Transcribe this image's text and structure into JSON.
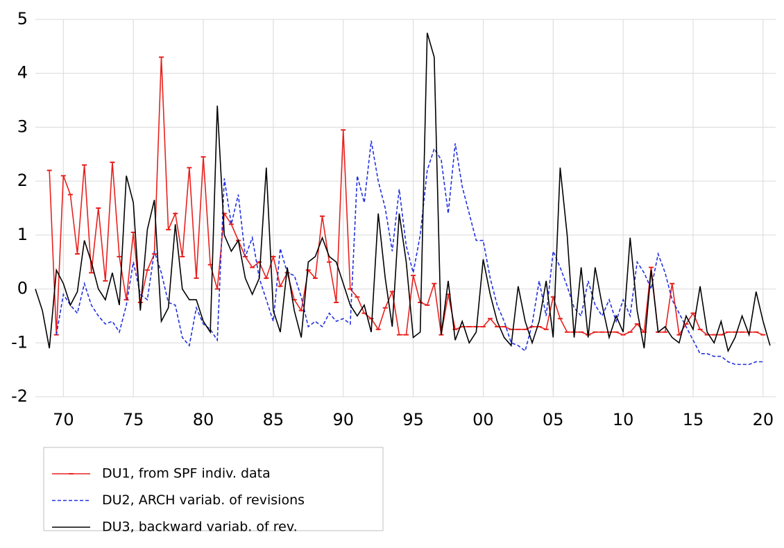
{
  "chart_data": {
    "type": "line",
    "x": [
      1968,
      1968.5,
      1969,
      1969.5,
      1970,
      1970.5,
      1971,
      1971.5,
      1972,
      1972.5,
      1973,
      1973.5,
      1974,
      1974.5,
      1975,
      1975.5,
      1976,
      1976.5,
      1977,
      1977.5,
      1978,
      1978.5,
      1979,
      1979.5,
      1980,
      1980.5,
      1981,
      1981.5,
      1982,
      1982.5,
      1983,
      1983.5,
      1984,
      1984.5,
      1985,
      1985.5,
      1986,
      1986.5,
      1987,
      1987.5,
      1988,
      1988.5,
      1989,
      1989.5,
      1990,
      1990.5,
      1991,
      1991.5,
      1992,
      1992.5,
      1993,
      1993.5,
      1994,
      1994.5,
      1995,
      1995.5,
      1996,
      1996.5,
      1997,
      1997.5,
      1998,
      1998.5,
      1999,
      1999.5,
      2000,
      2000.5,
      2001,
      2001.5,
      2002,
      2002.5,
      2003,
      2003.5,
      2004,
      2004.5,
      2005,
      2005.5,
      2006,
      2006.5,
      2007,
      2007.5,
      2008,
      2008.5,
      2009,
      2009.5,
      2010,
      2010.5,
      2011,
      2011.5,
      2012,
      2012.5,
      2013,
      2013.5,
      2014,
      2014.5,
      2015,
      2015.5,
      2016,
      2016.5,
      2017,
      2017.5,
      2018,
      2018.5,
      2019,
      2019.5,
      2020,
      2020.5
    ],
    "series": [
      {
        "name": "DU1, from SPF indiv. data",
        "color": "#e8201c",
        "marker": true,
        "values": [
          null,
          null,
          2.2,
          -0.85,
          2.1,
          1.75,
          0.65,
          2.3,
          0.3,
          1.5,
          0.15,
          2.35,
          0.6,
          -0.2,
          1.05,
          -0.25,
          0.35,
          0.65,
          4.3,
          1.1,
          1.4,
          0.6,
          2.25,
          0.2,
          2.45,
          0.45,
          0.0,
          1.4,
          1.2,
          0.9,
          0.6,
          0.4,
          0.5,
          0.2,
          0.6,
          0.05,
          0.3,
          -0.2,
          -0.4,
          0.35,
          0.2,
          1.35,
          0.5,
          -0.25,
          2.95,
          0.0,
          -0.15,
          -0.45,
          -0.55,
          -0.75,
          -0.35,
          -0.05,
          -0.85,
          -0.85,
          0.25,
          -0.25,
          -0.3,
          0.1,
          -0.85,
          -0.1,
          -0.75,
          -0.7,
          -0.7,
          -0.7,
          -0.7,
          -0.55,
          -0.7,
          -0.7,
          -0.75,
          -0.75,
          -0.75,
          -0.7,
          -0.7,
          -0.75,
          -0.15,
          -0.55,
          -0.8,
          -0.8,
          -0.8,
          -0.85,
          -0.8,
          -0.8,
          -0.8,
          -0.8,
          -0.85,
          -0.8,
          -0.65,
          -0.8,
          0.4,
          -0.8,
          -0.8,
          0.1,
          -0.85,
          -0.65,
          -0.45,
          -0.75,
          -0.85,
          -0.85,
          -0.85,
          -0.8,
          -0.8,
          -0.8,
          -0.8,
          -0.8,
          -0.85,
          null
        ]
      },
      {
        "name": "DU2, ARCH variab. of revisions",
        "color": "#1f2fe0",
        "dash": true,
        "values": [
          null,
          null,
          null,
          -0.85,
          -0.1,
          -0.3,
          -0.45,
          0.1,
          -0.3,
          -0.5,
          -0.65,
          -0.6,
          -0.8,
          -0.3,
          0.5,
          -0.1,
          -0.2,
          0.7,
          0.3,
          -0.25,
          -0.3,
          -0.9,
          -1.05,
          -0.35,
          -0.65,
          -0.75,
          -0.95,
          2.05,
          1.2,
          1.75,
          0.6,
          0.95,
          0.2,
          -0.2,
          -0.6,
          0.75,
          0.3,
          0.25,
          -0.15,
          -0.7,
          -0.6,
          -0.7,
          -0.45,
          -0.6,
          -0.55,
          -0.65,
          2.1,
          1.6,
          2.75,
          2.0,
          1.5,
          0.7,
          1.85,
          0.8,
          0.3,
          1.0,
          2.2,
          2.6,
          2.4,
          1.4,
          2.7,
          1.9,
          1.4,
          0.9,
          0.9,
          0.2,
          -0.3,
          -0.6,
          -1.0,
          -1.05,
          -1.15,
          -0.65,
          0.15,
          -0.5,
          0.7,
          0.4,
          0.05,
          -0.35,
          -0.5,
          0.15,
          -0.3,
          -0.5,
          -0.2,
          -0.6,
          -0.2,
          -0.5,
          0.5,
          0.3,
          0.0,
          0.65,
          0.3,
          -0.2,
          -0.45,
          -0.7,
          -0.95,
          -1.2,
          -1.2,
          -1.25,
          -1.25,
          -1.35,
          -1.4,
          -1.4,
          -1.4,
          -1.35,
          -1.35,
          null
        ]
      },
      {
        "name": "DU3, backward variab. of rev.",
        "color": "#000000",
        "values": [
          0.0,
          -0.4,
          -1.1,
          0.35,
          0.1,
          -0.3,
          -0.05,
          0.9,
          0.5,
          0.0,
          -0.2,
          0.3,
          -0.3,
          2.1,
          1.6,
          -0.4,
          1.1,
          1.65,
          -0.6,
          -0.35,
          1.2,
          0.0,
          -0.2,
          -0.2,
          -0.6,
          -0.8,
          3.4,
          1.0,
          0.7,
          0.9,
          0.2,
          -0.1,
          0.2,
          2.25,
          -0.4,
          -0.8,
          0.4,
          -0.4,
          -0.9,
          0.5,
          0.6,
          0.95,
          0.6,
          0.5,
          0.1,
          -0.3,
          -0.5,
          -0.3,
          -0.8,
          1.4,
          0.2,
          -0.7,
          1.4,
          0.5,
          -0.9,
          -0.8,
          4.75,
          4.3,
          -0.85,
          0.15,
          -0.95,
          -0.6,
          -1.0,
          -0.8,
          0.55,
          -0.1,
          -0.6,
          -0.9,
          -1.05,
          0.05,
          -0.6,
          -1.0,
          -0.6,
          0.15,
          -0.9,
          2.25,
          1.0,
          -0.9,
          0.4,
          -0.9,
          0.4,
          -0.3,
          -0.9,
          -0.5,
          -0.8,
          0.95,
          -0.4,
          -1.1,
          0.35,
          -0.8,
          -0.7,
          -0.9,
          -1.0,
          -0.5,
          -0.75,
          0.05,
          -0.8,
          -1.0,
          -0.6,
          -1.15,
          -0.9,
          -0.5,
          -0.85,
          -0.05,
          -0.6,
          -1.05
        ]
      }
    ],
    "xlim": [
      1968,
      2020.9
    ],
    "xticks": [
      {
        "value": 1970,
        "label": "70"
      },
      {
        "value": 1975,
        "label": "75"
      },
      {
        "value": 1980,
        "label": "80"
      },
      {
        "value": 1985,
        "label": "85"
      },
      {
        "value": 1990,
        "label": "90"
      },
      {
        "value": 1995,
        "label": "95"
      },
      {
        "value": 2000,
        "label": "00"
      },
      {
        "value": 2005,
        "label": "05"
      },
      {
        "value": 2010,
        "label": "10"
      },
      {
        "value": 2015,
        "label": "15"
      },
      {
        "value": 2020,
        "label": "20"
      }
    ],
    "ylim": [
      -2,
      5
    ],
    "yticks": [
      -2,
      -1,
      0,
      1,
      2,
      3,
      4,
      5
    ],
    "grid": true,
    "legend": "below"
  }
}
